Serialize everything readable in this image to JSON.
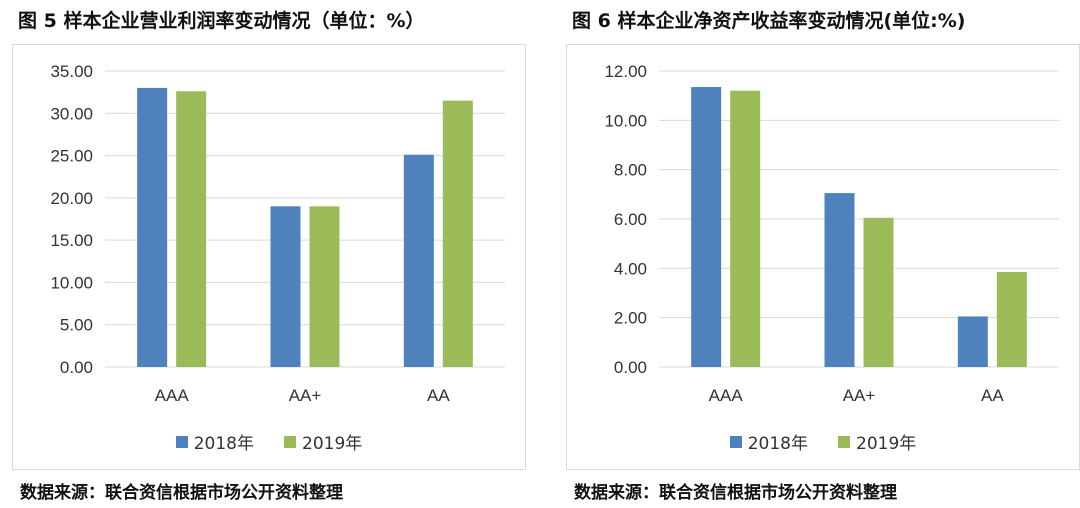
{
  "colors": {
    "series_2018": "#4f81bd",
    "series_2019": "#9bbb59",
    "grid": "#d9d9d9",
    "axis_text": "#333333"
  },
  "source_text": "数据来源：联合资信根据市场公开资料整理",
  "chart_data": [
    {
      "type": "bar",
      "title": "图 5   样本企业营业利润率变动情况（单位：%）",
      "categories": [
        "AAA",
        "AA+",
        "AA"
      ],
      "series": [
        {
          "name": "2018年",
          "values": [
            33.0,
            19.0,
            25.1
          ]
        },
        {
          "name": "2019年",
          "values": [
            32.6,
            19.0,
            31.5
          ]
        }
      ],
      "ylim": [
        0,
        35
      ],
      "yticks": [
        "0.00",
        "5.00",
        "10.00",
        "15.00",
        "20.00",
        "25.00",
        "30.00",
        "35.00"
      ],
      "grid": true,
      "legend": "bottom"
    },
    {
      "type": "bar",
      "title": "图 6   样本企业净资产收益率变动情况(单位:%)",
      "categories": [
        "AAA",
        "AA+",
        "AA"
      ],
      "series": [
        {
          "name": "2018年",
          "values": [
            11.35,
            7.05,
            2.05
          ]
        },
        {
          "name": "2019年",
          "values": [
            11.2,
            6.05,
            3.85
          ]
        }
      ],
      "ylim": [
        0,
        12
      ],
      "yticks": [
        "0.00",
        "2.00",
        "4.00",
        "6.00",
        "8.00",
        "10.00",
        "12.00"
      ],
      "grid": true,
      "legend": "bottom"
    }
  ]
}
